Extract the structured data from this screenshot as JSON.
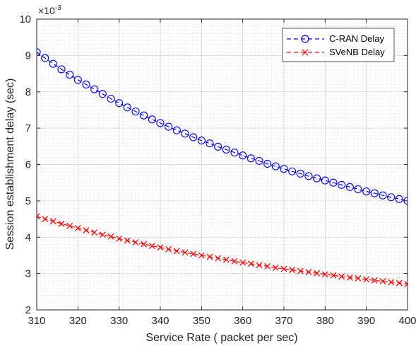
{
  "chart_data": {
    "type": "line",
    "title": "",
    "xlabel": "Service Rate ( packet per sec)",
    "ylabel": "Session establishment delay (sec)",
    "xlim": [
      310,
      400
    ],
    "ylim": [
      2,
      10
    ],
    "x_ticks": [
      310,
      320,
      330,
      340,
      350,
      360,
      370,
      380,
      390,
      400
    ],
    "y_ticks": [
      2,
      3,
      4,
      5,
      6,
      7,
      8,
      9,
      10
    ],
    "y_exponent_base": "×10",
    "y_exponent_power": "-3",
    "grid": true,
    "minor_grid": true,
    "legend_position": "top-right",
    "x": [
      310,
      312,
      314,
      316,
      318,
      320,
      322,
      324,
      326,
      328,
      330,
      332,
      334,
      336,
      338,
      340,
      342,
      344,
      346,
      348,
      350,
      352,
      354,
      356,
      358,
      360,
      362,
      364,
      366,
      368,
      370,
      372,
      374,
      376,
      378,
      380,
      382,
      384,
      386,
      388,
      390,
      392,
      394,
      396,
      398,
      400
    ],
    "series": [
      {
        "name": "C-RAN Delay",
        "color": "#0000ff",
        "line_style": "dashed",
        "marker": "circle",
        "values": [
          9.09,
          8.93,
          8.77,
          8.62,
          8.47,
          8.33,
          8.2,
          8.07,
          7.94,
          7.81,
          7.69,
          7.57,
          7.46,
          7.35,
          7.24,
          7.14,
          7.04,
          6.94,
          6.85,
          6.75,
          6.66,
          6.58,
          6.49,
          6.41,
          6.33,
          6.25,
          6.17,
          6.1,
          6.02,
          5.95,
          5.88,
          5.81,
          5.75,
          5.68,
          5.62,
          5.56,
          5.5,
          5.44,
          5.38,
          5.32,
          5.26,
          5.21,
          5.15,
          5.1,
          5.05,
          5.0
        ]
      },
      {
        "name": "SVeNB Delay",
        "color": "#ff0000",
        "line_style": "dashed",
        "marker": "x",
        "values": [
          4.57,
          4.5,
          4.44,
          4.37,
          4.31,
          4.25,
          4.19,
          4.13,
          4.07,
          4.02,
          3.96,
          3.91,
          3.86,
          3.81,
          3.76,
          3.72,
          3.67,
          3.62,
          3.58,
          3.54,
          3.5,
          3.46,
          3.42,
          3.38,
          3.34,
          3.3,
          3.27,
          3.23,
          3.2,
          3.16,
          3.13,
          3.1,
          3.07,
          3.04,
          3.01,
          2.98,
          2.95,
          2.92,
          2.89,
          2.87,
          2.84,
          2.81,
          2.79,
          2.76,
          2.74,
          2.71
        ]
      }
    ]
  }
}
